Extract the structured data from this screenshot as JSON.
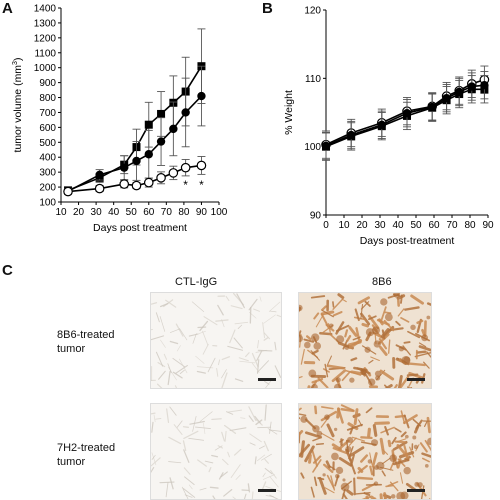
{
  "panels": {
    "a": "A",
    "b": "B",
    "c": "C"
  },
  "chart_data": [
    {
      "type": "line",
      "xlabel": "Days post treatment",
      "ylabel": "tumor volume (mm",
      "ylabel_sup": "3",
      "ylabel_close": ")",
      "xlim": [
        10,
        100
      ],
      "ylim": [
        100,
        1400
      ],
      "xticks": [
        "10",
        "20",
        "30",
        "40",
        "50",
        "60",
        "70",
        "80",
        "90",
        "100"
      ],
      "yticks": [
        "100",
        "200",
        "300",
        "400",
        "500",
        "600",
        "700",
        "800",
        "900",
        "1000",
        "1100",
        "1200",
        "1300",
        "1400"
      ],
      "grid": false,
      "series": [
        {
          "marker": "square-filled",
          "x": [
            14,
            32,
            46,
            53,
            60,
            67,
            74,
            81,
            90
          ],
          "y": [
            178,
            262,
            350,
            468,
            618,
            690,
            765,
            840,
            1010
          ],
          "err": [
            20,
            30,
            60,
            120,
            150,
            150,
            180,
            230,
            250
          ]
        },
        {
          "marker": "circle-filled",
          "x": [
            14,
            32,
            46,
            53,
            60,
            67,
            74,
            81,
            90
          ],
          "y": [
            172,
            282,
            330,
            375,
            420,
            505,
            590,
            700,
            810
          ],
          "err": [
            20,
            35,
            80,
            130,
            160,
            160,
            180,
            230,
            200
          ]
        },
        {
          "marker": "circle-open",
          "x": [
            14,
            32,
            46,
            53,
            60,
            67,
            74,
            81,
            90
          ],
          "y": [
            170,
            190,
            220,
            210,
            230,
            262,
            295,
            330,
            345
          ],
          "err": [
            15,
            20,
            25,
            20,
            30,
            40,
            45,
            55,
            60
          ]
        }
      ],
      "annotations": [
        {
          "x": 81,
          "y": 215,
          "text": "*"
        },
        {
          "x": 90,
          "y": 215,
          "text": "*"
        }
      ]
    },
    {
      "type": "line",
      "xlabel": "Days post-treatment",
      "ylabel": "% Weight",
      "xlim": [
        0,
        90
      ],
      "ylim": [
        90,
        120
      ],
      "xticks": [
        "0",
        "10",
        "20",
        "30",
        "40",
        "50",
        "60",
        "70",
        "80",
        "90"
      ],
      "yticks": [
        "90",
        "100",
        "110",
        "120"
      ],
      "grid": false,
      "series": [
        {
          "marker": "circle-open",
          "x": [
            0,
            14,
            31,
            45,
            59,
            67,
            74,
            81,
            88
          ],
          "y": [
            100.3,
            102.0,
            103.5,
            105.2,
            105.9,
            107.4,
            108.2,
            109.2,
            109.8
          ],
          "err": [
            2.0,
            2.0,
            2.0,
            2.0,
            2.0,
            2.0,
            2.0,
            2.0,
            2.0
          ]
        },
        {
          "marker": "square-filled",
          "x": [
            0,
            14,
            31,
            45,
            59,
            67,
            74,
            81,
            88
          ],
          "y": [
            100.0,
            101.5,
            103.0,
            104.5,
            105.7,
            106.8,
            107.7,
            108.4,
            108.4
          ],
          "err": [
            2.0,
            2.0,
            2.0,
            2.0,
            2.0,
            2.0,
            2.0,
            2.0,
            2.0
          ]
        },
        {
          "marker": "circle-filled",
          "x": [
            0,
            14,
            31,
            45,
            59,
            67,
            74,
            81,
            88
          ],
          "y": [
            100.1,
            101.7,
            103.2,
            104.9,
            105.8,
            107.1,
            108.0,
            108.8,
            109.0
          ],
          "err": [
            2.0,
            2.0,
            2.0,
            2.0,
            2.0,
            2.0,
            2.0,
            2.0,
            2.0
          ]
        }
      ]
    }
  ],
  "panel_c": {
    "col_titles": [
      "CTL-IgG",
      "8B6"
    ],
    "rows": [
      {
        "line1": "8B6-treated",
        "line2": "tumor"
      },
      {
        "line1": "7H2-treated",
        "line2": "tumor"
      }
    ],
    "stain_colors": {
      "control": "#ece8e2",
      "positive": "#c98a52"
    }
  }
}
